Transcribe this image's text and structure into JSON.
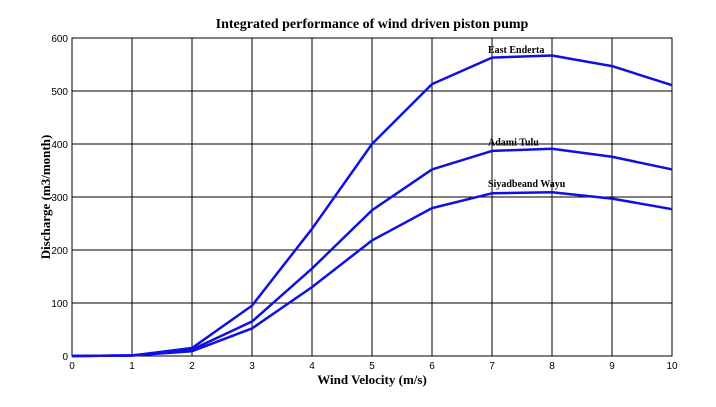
{
  "chart_data": {
    "type": "line",
    "title": "Integrated performance of wind driven piston pump",
    "xlabel": "Wind Velocity (m/s)",
    "ylabel": "Discharge (m3/month)",
    "xlim": [
      0,
      10
    ],
    "ylim": [
      0,
      600
    ],
    "xticks": [
      "0",
      "1",
      "2",
      "3",
      "4",
      "5",
      "6",
      "7",
      "8",
      "9",
      "10"
    ],
    "yticks": [
      "0",
      "100",
      "200",
      "300",
      "400",
      "500",
      "600"
    ],
    "grid": true,
    "line_color": "#1010e0",
    "x": [
      0,
      1,
      2,
      3,
      4,
      5,
      6,
      7,
      8,
      9,
      10
    ],
    "series": [
      {
        "name": "East Enderta",
        "values": [
          0,
          1,
          15,
          95,
          240,
          400,
          513,
          563,
          567,
          547,
          511
        ],
        "label_at": [
          7,
          572
        ]
      },
      {
        "name": "Adami Tulu",
        "values": [
          0,
          1,
          12,
          65,
          165,
          275,
          352,
          387,
          391,
          376,
          352
        ],
        "label_at": [
          7,
          397
        ]
      },
      {
        "name": "Siyadbeand Wayu",
        "values": [
          0,
          1,
          9,
          52,
          130,
          218,
          279,
          307,
          309,
          297,
          277
        ],
        "label_at": [
          7,
          319
        ]
      }
    ]
  }
}
